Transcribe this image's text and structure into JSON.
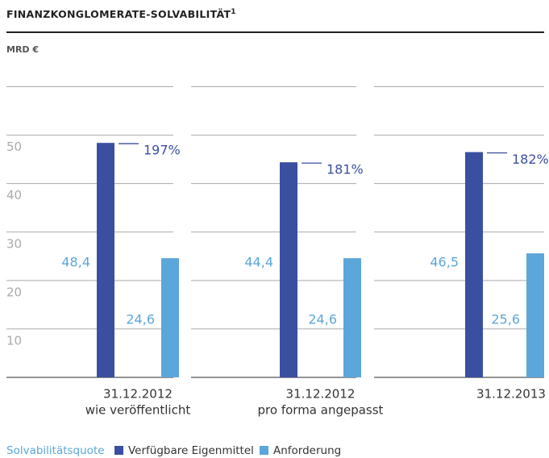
{
  "chart_data": {
    "type": "bar",
    "title": "FINANZKONGLOMERATE-SOLVABILITÄT",
    "title_footnote": "1",
    "unit_label": "MRD €",
    "categories": [
      [
        "31.12.2012",
        "wie veröffentlicht"
      ],
      [
        "31.12.2012",
        "pro forma angepasst"
      ],
      [
        "31.12.2013"
      ]
    ],
    "series": [
      {
        "name": "Verfügbare Eigenmittel",
        "color": "#3a4fa0",
        "values": [
          48.4,
          44.4,
          46.5
        ],
        "value_labels": [
          "48,4",
          "44,4",
          "46,5"
        ]
      },
      {
        "name": "Anforderung",
        "color": "#5ba6da",
        "values": [
          24.6,
          24.6,
          25.6
        ],
        "value_labels": [
          "24,6",
          "24,6",
          "25,6"
        ]
      }
    ],
    "ratio": {
      "name": "Solvabilitätsquote",
      "color": "#3a4fa0",
      "values": [
        197,
        181,
        182
      ],
      "value_labels": [
        "197%",
        "181%",
        "182%"
      ]
    },
    "ylim": [
      0,
      60
    ],
    "yticks": [
      10,
      20,
      30,
      40,
      50
    ],
    "grid": true
  }
}
